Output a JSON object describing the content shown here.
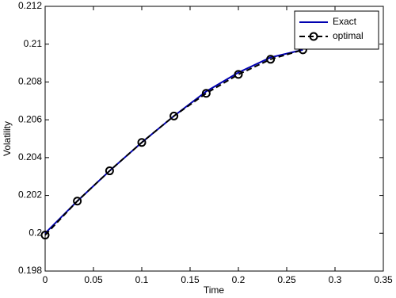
{
  "chart_data": {
    "type": "line",
    "x_label": "Time",
    "y_label": "Volatility",
    "x": [
      0,
      0.0333,
      0.0667,
      0.1,
      0.1333,
      0.1667,
      0.2,
      0.2333,
      0.2667
    ],
    "series": [
      {
        "name": "Exact",
        "color": "#0000b0",
        "style": "solid",
        "marker": false,
        "values": [
          0.2,
          0.2017,
          0.2033,
          0.2048,
          0.2062,
          0.2075,
          0.2085,
          0.2093,
          0.2097
        ]
      },
      {
        "name": "optimal",
        "color": "#000000",
        "style": "dashed",
        "marker": true,
        "values": [
          0.1999,
          0.2017,
          0.2033,
          0.2048,
          0.2062,
          0.2074,
          0.2084,
          0.2092,
          0.2097
        ]
      }
    ],
    "xlim": [
      0,
      0.35
    ],
    "xticks": [
      0,
      0.05,
      0.1,
      0.15,
      0.2,
      0.25,
      0.3,
      0.35
    ],
    "ylim": [
      0.198,
      0.212
    ],
    "yticks": [
      0.198,
      0.2,
      0.202,
      0.204,
      0.206,
      0.208,
      0.21,
      0.212
    ],
    "grid": false,
    "legend": "top-right"
  }
}
